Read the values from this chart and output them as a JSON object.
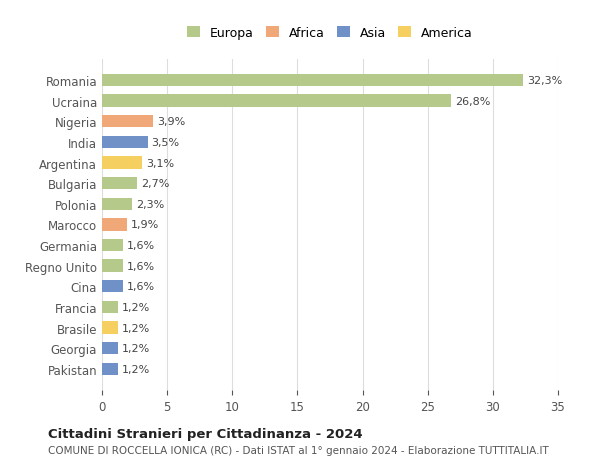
{
  "categories": [
    "Romania",
    "Ucraina",
    "Nigeria",
    "India",
    "Argentina",
    "Bulgaria",
    "Polonia",
    "Marocco",
    "Germania",
    "Regno Unito",
    "Cina",
    "Francia",
    "Brasile",
    "Georgia",
    "Pakistan"
  ],
  "values": [
    32.3,
    26.8,
    3.9,
    3.5,
    3.1,
    2.7,
    2.3,
    1.9,
    1.6,
    1.6,
    1.6,
    1.2,
    1.2,
    1.2,
    1.2
  ],
  "labels": [
    "32,3%",
    "26,8%",
    "3,9%",
    "3,5%",
    "3,1%",
    "2,7%",
    "2,3%",
    "1,9%",
    "1,6%",
    "1,6%",
    "1,6%",
    "1,2%",
    "1,2%",
    "1,2%",
    "1,2%"
  ],
  "colors": [
    "#b5c98a",
    "#b5c98a",
    "#f0a878",
    "#7090c8",
    "#f5d060",
    "#b5c98a",
    "#b5c98a",
    "#f0a878",
    "#b5c98a",
    "#b5c98a",
    "#7090c8",
    "#b5c98a",
    "#f5d060",
    "#7090c8",
    "#7090c8"
  ],
  "legend_labels": [
    "Europa",
    "Africa",
    "Asia",
    "America"
  ],
  "legend_colors": [
    "#b5c98a",
    "#f0a878",
    "#7090c8",
    "#f5d060"
  ],
  "title": "Cittadini Stranieri per Cittadinanza - 2024",
  "subtitle": "COMUNE DI ROCCELLA IONICA (RC) - Dati ISTAT al 1° gennaio 2024 - Elaborazione TUTTITALIA.IT",
  "xlim": [
    0,
    35
  ],
  "xticks": [
    0,
    5,
    10,
    15,
    20,
    25,
    30,
    35
  ],
  "background_color": "#ffffff",
  "grid_color": "#dddddd"
}
